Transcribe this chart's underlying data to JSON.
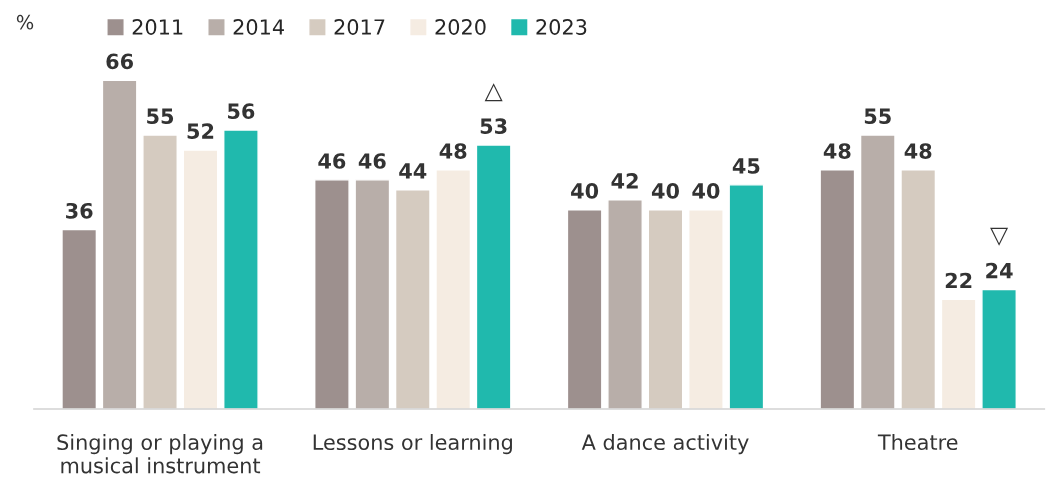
{
  "chart_data": {
    "type": "bar",
    "ylabel": "%",
    "categories": [
      "Singing or playing a\nmusical instrument",
      "Lessons or learning",
      "A dance activity",
      "Theatre"
    ],
    "series": [
      {
        "name": "2011",
        "color": "#9d908e",
        "values": [
          36,
          46,
          40,
          48
        ]
      },
      {
        "name": "2014",
        "color": "#b8aea9",
        "values": [
          66,
          46,
          42,
          55
        ]
      },
      {
        "name": "2017",
        "color": "#d5cbc0",
        "values": [
          55,
          44,
          40,
          48
        ]
      },
      {
        "name": "2020",
        "color": "#f5ece2",
        "values": [
          52,
          48,
          40,
          22
        ]
      },
      {
        "name": "2023",
        "color": "#20b9ad",
        "values": [
          56,
          53,
          45,
          24
        ]
      }
    ],
    "data_labels": true,
    "legend": "top left",
    "grid": false,
    "annotations": [
      "△",
      "▽"
    ]
  }
}
